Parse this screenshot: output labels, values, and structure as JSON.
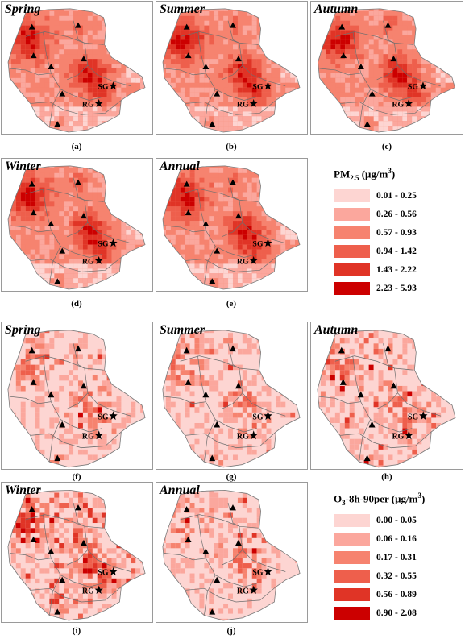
{
  "pm25_maps": [
    {
      "season": "Spring",
      "letter": "(a)",
      "intensity": "pm-high"
    },
    {
      "season": "Summer",
      "letter": "(b)",
      "intensity": "pm-high"
    },
    {
      "season": "Autumn",
      "letter": "(c)",
      "intensity": "pm-high"
    },
    {
      "season": "Winter",
      "letter": "(d)",
      "intensity": "pm-high"
    },
    {
      "season": "Annual",
      "letter": "(e)",
      "intensity": "pm-high"
    }
  ],
  "o3_maps": [
    {
      "season": "Spring",
      "letter": "(f)",
      "intensity": "o3-low"
    },
    {
      "season": "Summer",
      "letter": "(g)",
      "intensity": "o3-low"
    },
    {
      "season": "Autumn",
      "letter": "(h)",
      "intensity": "o3-low"
    },
    {
      "season": "Winter",
      "letter": "(i)",
      "intensity": "o3-mid"
    },
    {
      "season": "Annual",
      "letter": "(j)",
      "intensity": "o3-low"
    }
  ],
  "site_labels": {
    "sg": "SG",
    "rg": "RG"
  },
  "pm25_legend": {
    "title_main": "PM",
    "title_sub": "2.5",
    "title_unit_pre": " (μg/m",
    "title_unit_sup": "3",
    "title_unit_post": ")",
    "classes": [
      {
        "label": "0.01 - 0.25",
        "color": "#fdd5d2"
      },
      {
        "label": "0.26 - 0.56",
        "color": "#fba79d"
      },
      {
        "label": "0.57 - 0.93",
        "color": "#f6836f"
      },
      {
        "label": "0.94 - 1.42",
        "color": "#ee5f4c"
      },
      {
        "label": "1.43 - 2.22",
        "color": "#e03426"
      },
      {
        "label": "2.23 - 5.93",
        "color": "#cc0000"
      }
    ]
  },
  "o3_legend": {
    "title_main": "O",
    "title_sub": "3",
    "title_unit_pre": "-8h-90per (μg/m",
    "title_unit_sup": "3",
    "title_unit_post": ")",
    "classes": [
      {
        "label": "0.00 - 0.05",
        "color": "#fdd5d2"
      },
      {
        "label": "0.06 - 0.16",
        "color": "#fba79d"
      },
      {
        "label": "0.17 - 0.31",
        "color": "#f6836f"
      },
      {
        "label": "0.32 - 0.55",
        "color": "#ee5f4c"
      },
      {
        "label": "0.56 - 0.89",
        "color": "#e03426"
      },
      {
        "label": "0.90 - 2.08",
        "color": "#cc0000"
      }
    ]
  }
}
